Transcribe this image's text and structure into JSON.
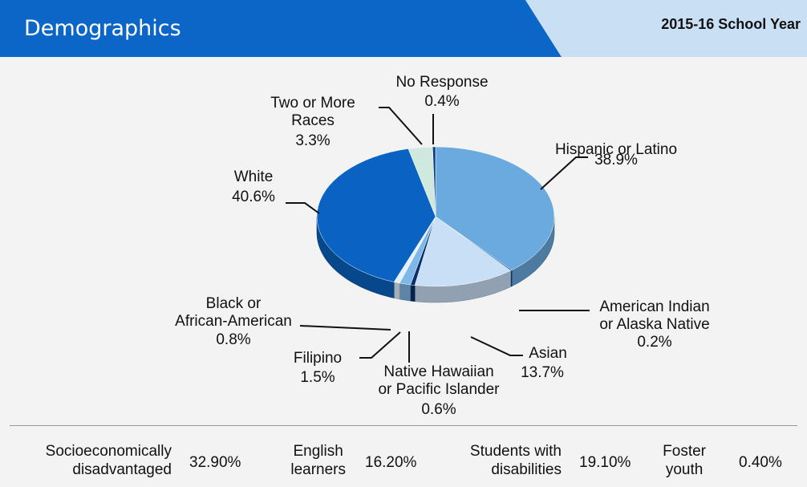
{
  "header": {
    "title": "Demographics",
    "year": "2015-16 School Year",
    "colors": {
      "banner": "#0b66c8",
      "tab": "#c9dff4"
    }
  },
  "chart_data": {
    "type": "pie",
    "slices": [
      {
        "label": "Hispanic or Latino",
        "value": 38.9,
        "display": "38.9%",
        "color": "#6aaadf"
      },
      {
        "label": "American Indian or Alaska Native",
        "value": 0.2,
        "display": "0.2%",
        "color": "#0d4f9a"
      },
      {
        "label": "Asian",
        "value": 13.7,
        "display": "13.7%",
        "color": "#c9dff6"
      },
      {
        "label": "Native Hawaiian or Pacific Islander",
        "value": 0.6,
        "display": "0.6%",
        "color": "#08306e"
      },
      {
        "label": "Filipino",
        "value": 1.5,
        "display": "1.5%",
        "color": "#7fb8e8"
      },
      {
        "label": "Black or African-American",
        "value": 0.8,
        "display": "0.8%",
        "color": "#e4f1fb"
      },
      {
        "label": "White",
        "value": 40.6,
        "display": "40.6%",
        "color": "#0a63c3"
      },
      {
        "label": "Two or More Races",
        "value": 3.3,
        "display": "3.3%",
        "color": "#cfe9df"
      },
      {
        "label": "No Response",
        "value": 0.4,
        "display": "0.4%",
        "color": "#0a3f86"
      }
    ]
  },
  "stats": [
    {
      "label_lines": [
        "Socioeconomically",
        "disadvantaged"
      ],
      "value": "32.90%"
    },
    {
      "label_lines": [
        "English",
        "learners"
      ],
      "value": "16.20%"
    },
    {
      "label_lines": [
        "Students with",
        "disabilities"
      ],
      "value": "19.10%"
    },
    {
      "label_lines": [
        "Foster",
        "youth"
      ],
      "value": "0.40%"
    }
  ]
}
